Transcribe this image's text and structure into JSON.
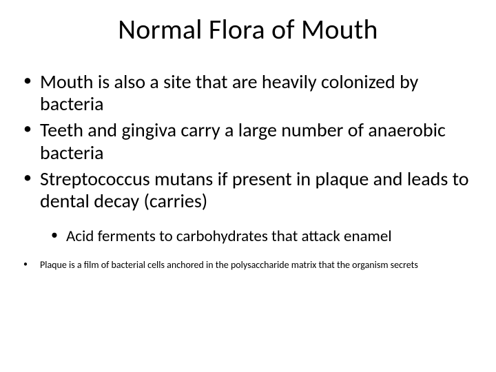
{
  "title": "Normal Flora of Mouth",
  "bullets": {
    "b1": "Mouth is also a site that are heavily colonized by bacteria",
    "b2": "Teeth and  gingiva carry a large number of anaerobic bacteria",
    "b3": "Streptococcus mutans if present in plaque and leads to dental decay (carries)",
    "sub1": "Acid ferments to carbohydrates that attack enamel",
    "b4": "Plaque is a film of bacterial cells anchored in the polysaccharide matrix that the organism secrets"
  },
  "style": {
    "background_color": "#ffffff",
    "text_color": "#000000",
    "title_fontsize": 40,
    "body_fontsize": 28,
    "sub_fontsize": 23,
    "small_fontsize": 14,
    "font_family": "Calibri"
  }
}
